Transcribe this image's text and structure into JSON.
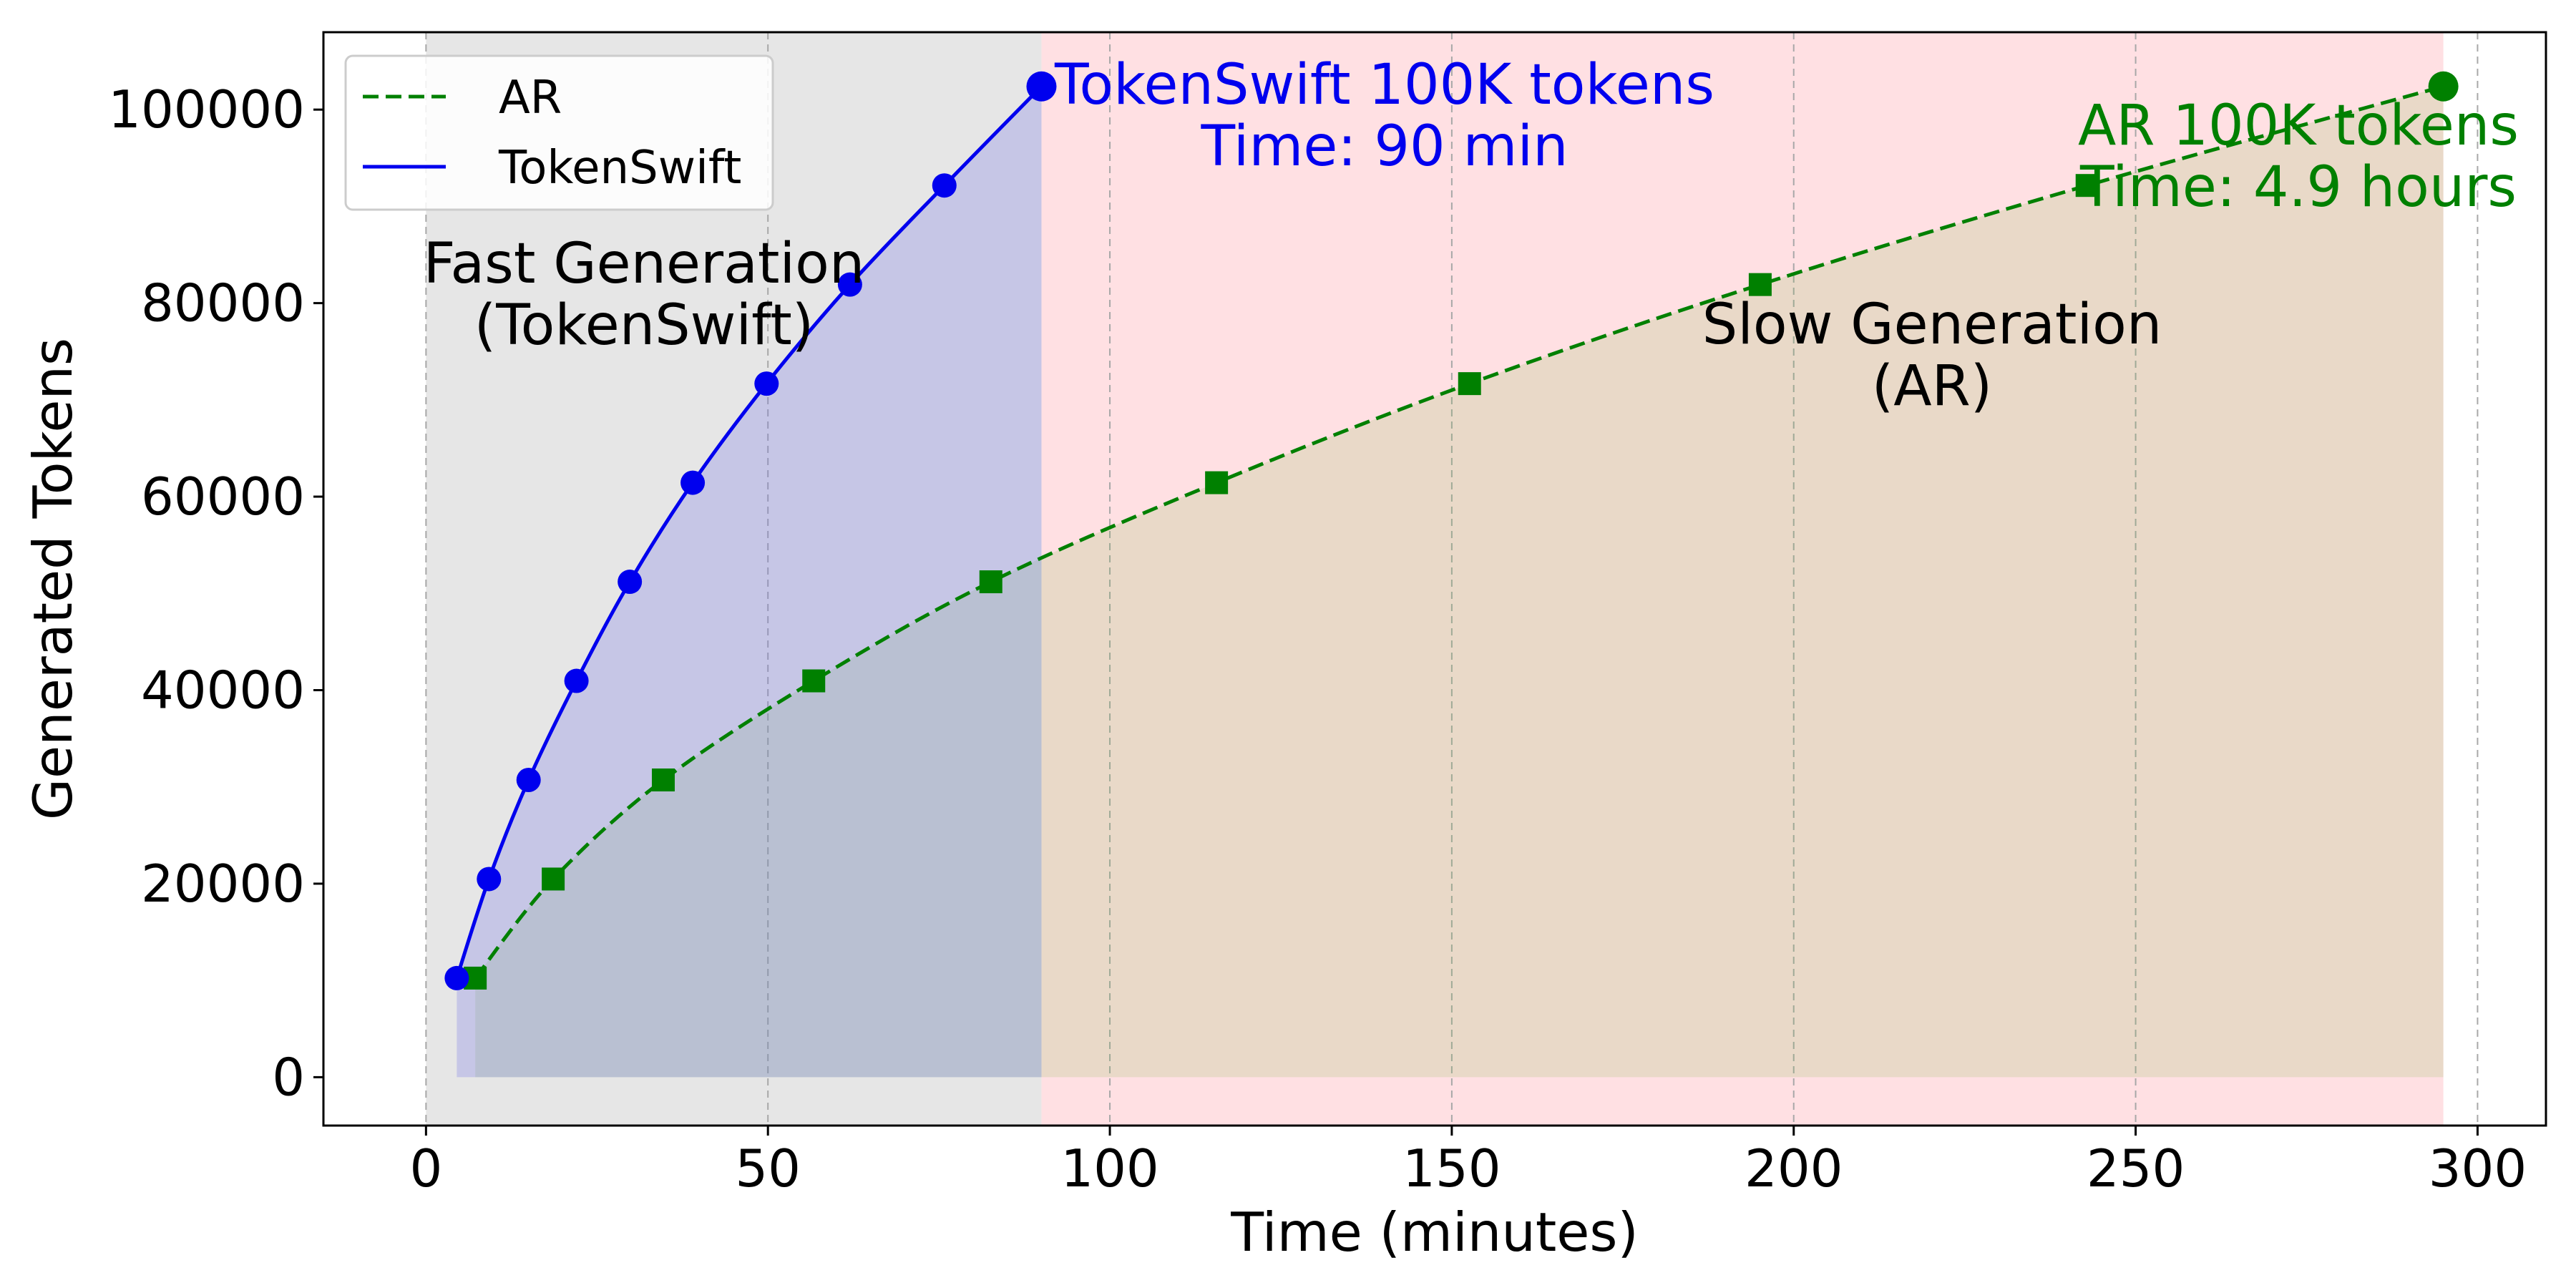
{
  "chart_data": {
    "type": "line",
    "xlabel": "Time (minutes)",
    "ylabel": "Generated Tokens",
    "xlim": [
      -15,
      310
    ],
    "ylim": [
      -5000,
      108000
    ],
    "x_ticks": [
      0,
      50,
      100,
      150,
      200,
      250,
      300
    ],
    "y_ticks": [
      0,
      20000,
      40000,
      60000,
      80000,
      100000
    ],
    "grid": "vertical dashed",
    "legend_position": "top-left",
    "series": [
      {
        "name": "AR",
        "color": "#008000",
        "linestyle": "dashed",
        "marker": "square",
        "x": [
          7.2,
          18.6,
          34.7,
          56.7,
          82.6,
          115.6,
          152.6,
          195.1,
          242.9,
          295.0
        ],
        "y": [
          10240,
          20480,
          30720,
          40960,
          51200,
          61440,
          71680,
          81920,
          92160,
          102400
        ]
      },
      {
        "name": "TokenSwift",
        "color": "#0000ee",
        "linestyle": "solid",
        "marker": "circle",
        "x": [
          4.5,
          9.2,
          15.0,
          22.0,
          29.8,
          39.0,
          49.8,
          62.0,
          75.8,
          90.0
        ],
        "y": [
          10240,
          20480,
          30720,
          40960,
          51200,
          61440,
          71680,
          81920,
          92160,
          102400
        ]
      }
    ],
    "regions": [
      {
        "x_start": 0,
        "x_end": 90,
        "color": "#e6e6e6"
      },
      {
        "x_start": 90,
        "x_end": 295,
        "color": "#ffe0e3"
      }
    ],
    "annotations": [
      {
        "id": "fast",
        "lines": [
          "Fast Generation",
          "(TokenSwift)"
        ],
        "color": "#000000"
      },
      {
        "id": "slow",
        "lines": [
          "Slow Generation",
          "(AR)"
        ],
        "color": "#000000"
      },
      {
        "id": "ts_end",
        "lines": [
          "TokenSwift 100K tokens",
          "Time: 90 min"
        ],
        "color": "#0000ee"
      },
      {
        "id": "ar_end",
        "lines": [
          "AR 100K tokens",
          "Time: 4.9 hours"
        ],
        "color": "#008000"
      }
    ]
  }
}
